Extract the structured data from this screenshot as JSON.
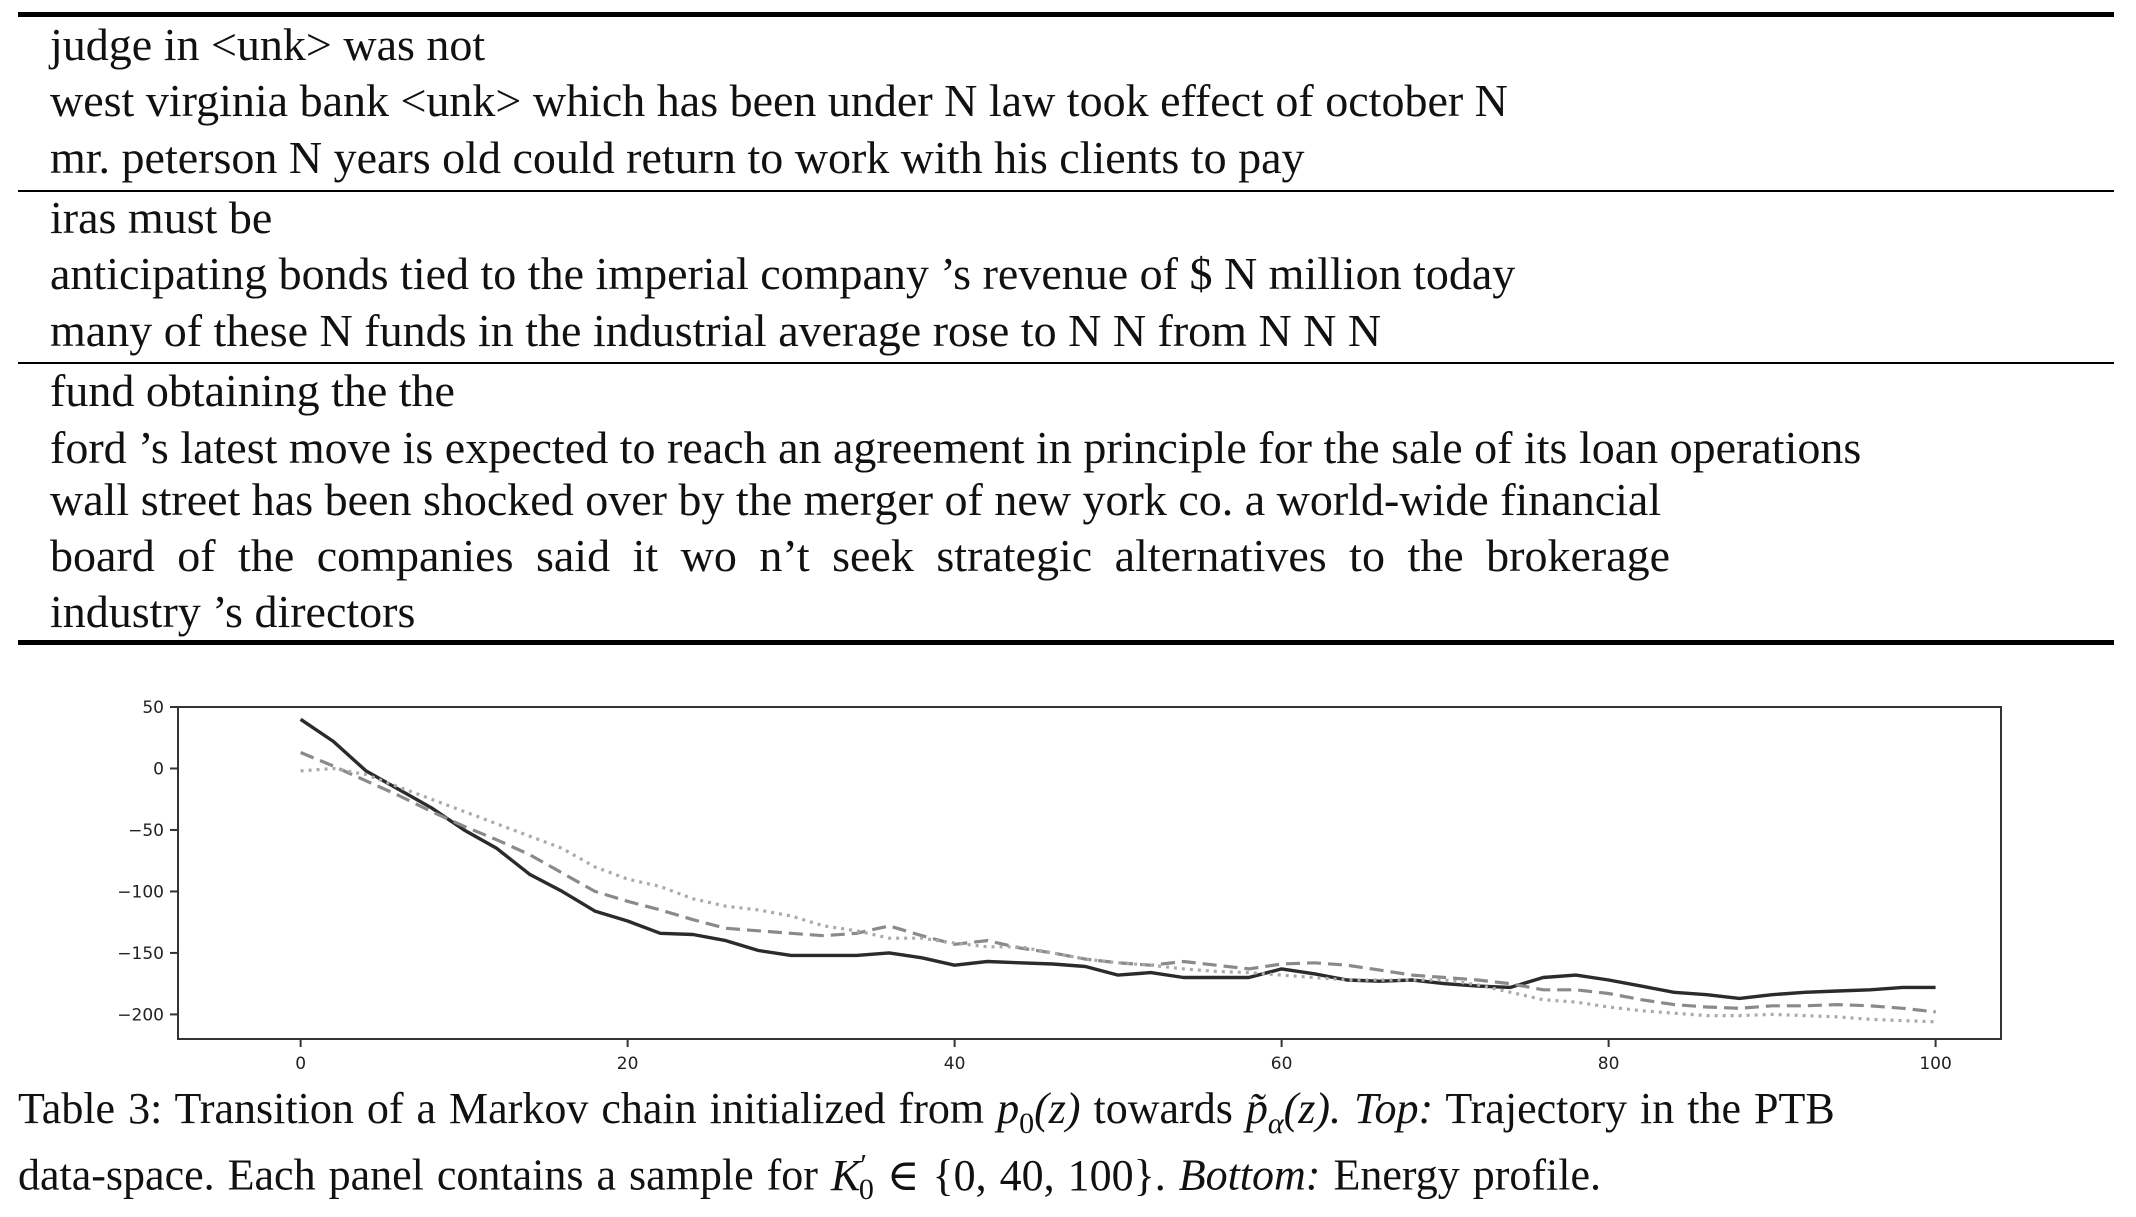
{
  "table": {
    "panels": [
      {
        "lines": [
          "judge in <unk> was not",
          "west virginia bank <unk> which has been under N law took effect of october N",
          "mr. peterson N years old could return to work with his clients to pay"
        ]
      },
      {
        "lines": [
          "iras must be",
          "anticipating bonds tied to the imperial company ’s revenue of $ N million today",
          "many of these N funds in the industrial average rose to N N from N N N"
        ]
      },
      {
        "lines": [
          "fund obtaining the the",
          "ford ’s latest move is expected to reach an agreement in principle for the sale of its loan operations",
          "wall street has been shocked over by the merger of new york co. a world-wide financial",
          "board of the companies said it wo n’t seek strategic alternatives to the brokerage",
          "industry ’s directors"
        ]
      }
    ]
  },
  "chart_data": {
    "type": "line",
    "title": "",
    "xlabel": "",
    "ylabel": "",
    "xlim": [
      -7.5,
      104
    ],
    "ylim": [
      -220,
      50
    ],
    "xticks": [
      "0",
      "20",
      "40",
      "60",
      "80",
      "100"
    ],
    "yticks": [
      "50",
      "0",
      "−50",
      "−100",
      "−150",
      "−200"
    ],
    "grid": false,
    "legend": "none",
    "series": [
      {
        "style": "solid",
        "color": "#2b2b2b",
        "x": [
          0,
          2,
          4,
          6,
          8,
          10,
          12,
          14,
          16,
          18,
          20,
          22,
          24,
          26,
          28,
          30,
          32,
          34,
          36,
          38,
          40,
          42,
          44,
          46,
          48,
          50,
          52,
          54,
          56,
          58,
          60,
          62,
          64,
          66,
          68,
          70,
          72,
          74,
          76,
          78,
          80,
          82,
          84,
          86,
          88,
          90,
          92,
          94,
          96,
          98,
          100
        ],
        "y": [
          40,
          22,
          -2,
          -17,
          -32,
          -50,
          -65,
          -86,
          -100,
          -116,
          -124,
          -134,
          -135,
          -140,
          -148,
          -152,
          -152,
          -152,
          -150,
          -154,
          -160,
          -157,
          -158,
          -159,
          -161,
          -168,
          -166,
          -170,
          -170,
          -170,
          -163,
          -167,
          -172,
          -173,
          -172,
          -175,
          -177,
          -178,
          -170,
          -168,
          -172,
          -177,
          -182,
          -184,
          -187,
          -184,
          -182,
          -181,
          -180,
          -178,
          -178
        ]
      },
      {
        "style": "dashed",
        "color": "#8a8a8a",
        "x": [
          0,
          2,
          4,
          6,
          8,
          10,
          12,
          14,
          16,
          18,
          20,
          22,
          24,
          26,
          28,
          30,
          32,
          34,
          36,
          38,
          40,
          42,
          44,
          46,
          48,
          50,
          52,
          54,
          56,
          58,
          60,
          62,
          64,
          66,
          68,
          70,
          72,
          74,
          76,
          78,
          80,
          82,
          84,
          86,
          88,
          90,
          92,
          94,
          96,
          98,
          100
        ],
        "y": [
          13,
          2,
          -10,
          -22,
          -35,
          -47,
          -58,
          -70,
          -85,
          -100,
          -108,
          -115,
          -123,
          -130,
          -132,
          -134,
          -136,
          -134,
          -128,
          -136,
          -143,
          -140,
          -146,
          -150,
          -155,
          -158,
          -160,
          -157,
          -160,
          -163,
          -159,
          -158,
          -160,
          -164,
          -168,
          -170,
          -172,
          -175,
          -180,
          -180,
          -183,
          -188,
          -192,
          -194,
          -195,
          -193,
          -193,
          -192,
          -193,
          -195,
          -198
        ]
      },
      {
        "style": "dotted",
        "color": "#aaaaaa",
        "x": [
          0,
          2,
          4,
          6,
          8,
          10,
          12,
          14,
          16,
          18,
          20,
          22,
          24,
          26,
          28,
          30,
          32,
          34,
          36,
          38,
          40,
          42,
          44,
          46,
          48,
          50,
          52,
          54,
          56,
          58,
          60,
          62,
          64,
          66,
          68,
          70,
          72,
          74,
          76,
          78,
          80,
          82,
          84,
          86,
          88,
          90,
          92,
          94,
          96,
          98,
          100
        ],
        "y": [
          -2,
          0,
          -5,
          -15,
          -25,
          -35,
          -45,
          -55,
          -65,
          -80,
          -90,
          -96,
          -106,
          -112,
          -115,
          -120,
          -128,
          -132,
          -138,
          -138,
          -142,
          -145,
          -145,
          -150,
          -155,
          -158,
          -160,
          -163,
          -165,
          -166,
          -168,
          -170,
          -172,
          -172,
          -172,
          -172,
          -176,
          -182,
          -188,
          -190,
          -194,
          -197,
          -199,
          -201,
          -201,
          -200,
          -201,
          -202,
          -204,
          -205,
          -206
        ]
      }
    ]
  },
  "caption": {
    "label": "Table 3:",
    "part1": "Transition of a Markov chain initialized from",
    "p0_symbol": "p",
    "p0_sub": "0",
    "p0_arg": "(z)",
    "towards": "towards",
    "ptilde_symbol": "p̃",
    "ptilde_sub": "α",
    "ptilde_arg": "(z).",
    "top_label": "Top:",
    "top_text": "Trajectory in the PTB",
    "line2_text": "data-space. Each panel contains a sample for",
    "k_symbol": "K",
    "k_sup": "′",
    "k_sub": "0",
    "k_set": "∈ {0, 40, 100}.",
    "bottom_label": "Bottom:",
    "bottom_text": "Energy profile."
  }
}
